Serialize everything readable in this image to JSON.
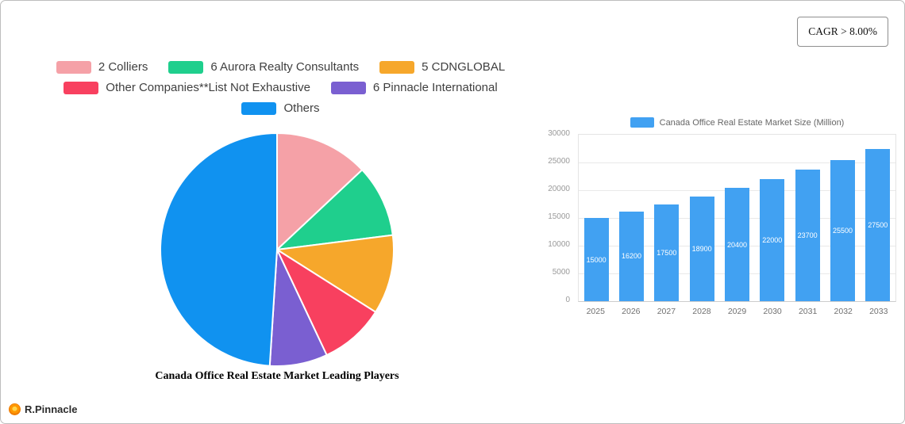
{
  "header": {
    "cagr_label": "CAGR > 8.00%"
  },
  "legend": {
    "items": [
      {
        "label": "2 Colliers",
        "color": "#f5a1a7"
      },
      {
        "label": "6 Aurora Realty Consultants",
        "color": "#1fcf8d"
      },
      {
        "label": "5 CDNGLOBAL",
        "color": "#f6a72b"
      },
      {
        "label": "Other Companies**List Not Exhaustive",
        "color": "#f8405f"
      },
      {
        "label": "6 Pinnacle International",
        "color": "#7a5fd1"
      },
      {
        "label": "Others",
        "color": "#1092f0"
      }
    ]
  },
  "chart_data": [
    {
      "type": "pie",
      "title": "Canada Office Real Estate Market Leading Players",
      "labels": [
        "2 Colliers",
        "6 Aurora Realty Consultants",
        "5 CDNGLOBAL",
        "Other Companies**List Not Exhaustive",
        "6 Pinnacle International",
        "Others"
      ],
      "values": [
        13,
        10,
        11,
        9,
        8,
        49
      ],
      "unit": "percent-estimated-from-slice-angles",
      "colors": [
        "#f5a1a7",
        "#1fcf8d",
        "#f6a72b",
        "#f8405f",
        "#7a5fd1",
        "#1092f0"
      ],
      "start_angle": "top",
      "direction": "clockwise",
      "legend_position": "top"
    },
    {
      "type": "bar",
      "title": "Canada Office Real Estate Market Size (Million)",
      "categories": [
        "2025",
        "2026",
        "2027",
        "2028",
        "2029",
        "2030",
        "2031",
        "2032",
        "2033"
      ],
      "values": [
        15000,
        16200,
        17500,
        18900,
        20400,
        22000,
        23700,
        25500,
        27500
      ],
      "bar_color": "#41a1f2",
      "xlabel": "",
      "ylabel": "",
      "ylim": [
        0,
        30000
      ],
      "yticks": [
        0,
        5000,
        10000,
        15000,
        20000,
        25000,
        30000
      ],
      "grid": true,
      "value_labels": "inside-bars-white",
      "legend_position": "top"
    }
  ],
  "footer": {
    "brand": "R.Pinnacle"
  }
}
